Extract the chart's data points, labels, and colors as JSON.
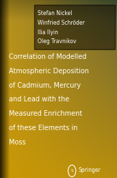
{
  "authors": [
    "Stefan Nickel",
    "Winfried Schröder",
    "Ilia Ilyin",
    "Oleg Travnikov"
  ],
  "title_lines": [
    "Correlation of Modelled",
    "Atmospheric Deposition",
    "of Cadmium, Mercury",
    "and Lead with the",
    "Measured Enrichment",
    "of these Elements in",
    "Moss"
  ],
  "publisher": "Springer",
  "author_text_color": "#ffffff",
  "title_text_color": "#ffffff",
  "publisher_text_color": "#ffffff",
  "author_fontsize": 5.5,
  "title_fontsize": 7.0,
  "publisher_fontsize": 5.5,
  "figsize": [
    1.71,
    2.6
  ],
  "dpi": 100
}
